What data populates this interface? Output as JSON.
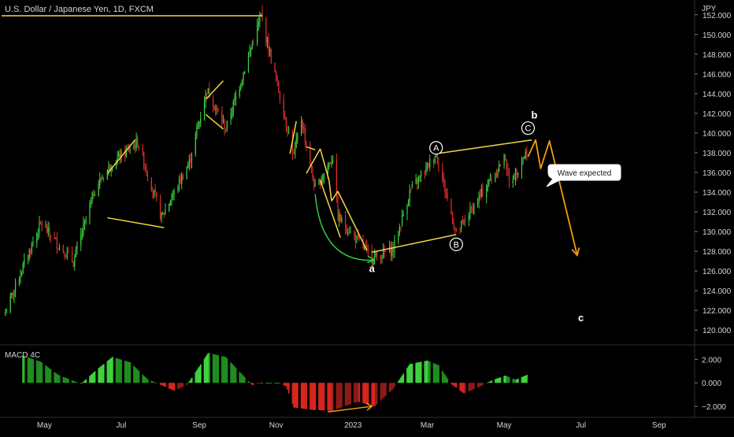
{
  "header": {
    "symbol_title": "U.S. Dollar / Japanese Yen, 1D, FXCM",
    "currency": "JPY"
  },
  "colors": {
    "background": "#000000",
    "up": "#3fd43f",
    "down": "#e0302a",
    "pattern": "#f5d547",
    "wave_projection": "#f39c12",
    "arc": "#2ecc40",
    "text": "#d1d4dc"
  },
  "chart_data": [
    {
      "type": "candlestick",
      "title": "U.S. Dollar / Japanese Yen, 1D, FXCM",
      "x_ticks": [
        "May",
        "Jul",
        "Sep",
        "Nov",
        "2023",
        "Mar",
        "May",
        "Jul",
        "Sep"
      ],
      "y_ticks": [
        120,
        122,
        124,
        126,
        128,
        130,
        132,
        134,
        136,
        138,
        140,
        142,
        144,
        146,
        148,
        150,
        152
      ],
      "ylim": [
        118.5,
        153.5
      ],
      "price_path_anchors": [
        [
          "2022-03-31",
          121.8
        ],
        [
          "2022-04-14",
          126.4
        ],
        [
          "2022-04-28",
          130.8
        ],
        [
          "2022-05-24",
          126.9
        ],
        [
          "2022-06-10",
          134.3
        ],
        [
          "2022-06-22",
          136.7
        ],
        [
          "2022-07-14",
          139.1
        ],
        [
          "2022-08-02",
          131.4
        ],
        [
          "2022-08-24",
          137.0
        ],
        [
          "2022-09-07",
          144.4
        ],
        [
          "2022-09-22",
          140.4
        ],
        [
          "2022-10-20",
          151.9
        ],
        [
          "2022-11-10",
          140.5
        ],
        [
          "2022-11-15",
          137.6
        ],
        [
          "2022-11-21",
          141.5
        ],
        [
          "2022-12-02",
          134.2
        ],
        [
          "2022-12-16",
          137.6
        ],
        [
          "2022-12-20",
          131.5
        ],
        [
          "2023-01-16",
          127.3
        ],
        [
          "2023-02-02",
          128.2
        ],
        [
          "2023-02-15",
          134.0
        ],
        [
          "2023-03-08",
          137.9
        ],
        [
          "2023-03-24",
          129.8
        ],
        [
          "2023-04-14",
          134.0
        ],
        [
          "2023-05-02",
          137.6
        ],
        [
          "2023-05-05",
          134.8
        ],
        [
          "2023-05-20",
          138.4
        ]
      ],
      "annotations": [
        {
          "label": "a",
          "date": "2023-01-16",
          "price": 126.2
        },
        {
          "label": "b",
          "date": "2023-05-25",
          "price": 141.8
        },
        {
          "label": "c",
          "date": "2023-07-01",
          "price": 121.2
        },
        {
          "label": "A",
          "date": "2023-03-08",
          "price": 138.5
        },
        {
          "label": "B",
          "date": "2023-03-24",
          "price": 128.7
        },
        {
          "label": "C",
          "date": "2023-05-20",
          "price": 140.5
        }
      ],
      "callout_text": "Wave expected",
      "resistance_line": {
        "from": "2022-03-28",
        "to": "2022-10-21",
        "price": 151.9
      },
      "pattern_lines": [
        [
          [
            "2022-06-20",
            135.9
          ],
          [
            "2022-07-12",
            139.3
          ]
        ],
        [
          [
            "2022-06-20",
            131.4
          ],
          [
            "2022-08-04",
            130.4
          ]
        ],
        [
          [
            "2022-09-06",
            143.4
          ],
          [
            "2022-09-20",
            145.3
          ]
        ],
        [
          [
            "2022-09-06",
            141.9
          ],
          [
            "2022-09-20",
            140.4
          ]
        ],
        [
          [
            "2022-11-12",
            137.9
          ],
          [
            "2022-11-17",
            141.2
          ]
        ],
        [
          [
            "2022-11-25",
            138.6
          ],
          [
            "2022-12-02",
            138.3
          ]
        ],
        [
          [
            "2022-11-25",
            135.9
          ],
          [
            "2022-12-06",
            138.4
          ]
        ],
        [
          [
            "2022-12-06",
            138.4
          ],
          [
            "2022-12-13",
            135.2
          ]
        ],
        [
          [
            "2022-12-13",
            135.2
          ],
          [
            "2022-12-15",
            133.1
          ]
        ],
        [
          [
            "2022-12-15",
            133.1
          ],
          [
            "2022-12-20",
            134.1
          ]
        ],
        [
          [
            "2022-12-20",
            134.1
          ],
          [
            "2023-01-12",
            128.1
          ]
        ],
        [
          [
            "2022-12-06",
            135.2
          ],
          [
            "2022-12-22",
            129.4
          ]
        ],
        [
          [
            "2023-01-16",
            127.9
          ],
          [
            "2023-03-24",
            129.7
          ]
        ],
        [
          [
            "2023-03-08",
            137.9
          ],
          [
            "2023-05-23",
            139.3
          ]
        ]
      ],
      "wave_projection": [
        [
          "2023-05-20",
          137.6
        ],
        [
          "2023-05-26",
          139.3
        ],
        [
          "2023-05-30",
          136.4
        ],
        [
          "2023-06-06",
          139.2
        ],
        [
          "2023-06-28",
          127.6
        ]
      ],
      "arc": [
        [
          "2022-12-02",
          133.8
        ],
        [
          "2023-01-18",
          127.1
        ]
      ]
    },
    {
      "type": "histogram",
      "title": "MACD 4C",
      "y_ticks": [
        2.0,
        0.0,
        -2.0
      ],
      "y_tick_labels": [
        "2.000",
        "0.000",
        "−2.000"
      ],
      "ylim": [
        -2.8,
        3.1
      ],
      "histogram_anchors": [
        [
          "2022-04-14",
          2.32
        ],
        [
          "2022-04-28",
          1.8
        ],
        [
          "2022-05-12",
          0.68
        ],
        [
          "2022-05-30",
          -0.09
        ],
        [
          "2022-06-10",
          0.99
        ],
        [
          "2022-06-24",
          2.21
        ],
        [
          "2022-07-08",
          1.75
        ],
        [
          "2022-07-22",
          0.3
        ],
        [
          "2022-08-02",
          -0.2
        ],
        [
          "2022-08-12",
          -0.67
        ],
        [
          "2022-08-22",
          -0.2
        ],
        [
          "2022-09-01",
          1.4
        ],
        [
          "2022-09-08",
          2.55
        ],
        [
          "2022-09-22",
          2.2
        ],
        [
          "2022-10-06",
          0.6
        ],
        [
          "2022-10-13",
          -0.2
        ],
        [
          "2022-10-20",
          0.0
        ],
        [
          "2022-11-03",
          0.0
        ],
        [
          "2022-11-09",
          -0.3
        ],
        [
          "2022-11-15",
          -2.1
        ],
        [
          "2022-11-30",
          -2.3
        ],
        [
          "2022-12-15",
          -2.38
        ],
        [
          "2023-01-05",
          -1.6
        ],
        [
          "2023-01-18",
          -2.0
        ],
        [
          "2023-02-02",
          -0.5
        ],
        [
          "2023-02-15",
          1.6
        ],
        [
          "2023-03-01",
          1.9
        ],
        [
          "2023-03-10",
          1.5
        ],
        [
          "2023-03-20",
          -0.1
        ],
        [
          "2023-03-30",
          -0.9
        ],
        [
          "2023-04-12",
          -0.3
        ],
        [
          "2023-04-22",
          0.25
        ],
        [
          "2023-05-02",
          0.62
        ],
        [
          "2023-05-10",
          0.27
        ],
        [
          "2023-05-20",
          0.72
        ]
      ],
      "divergence_line": [
        [
          "2022-12-12",
          -2.47
        ],
        [
          "2023-01-16",
          -2.0
        ]
      ]
    }
  ]
}
